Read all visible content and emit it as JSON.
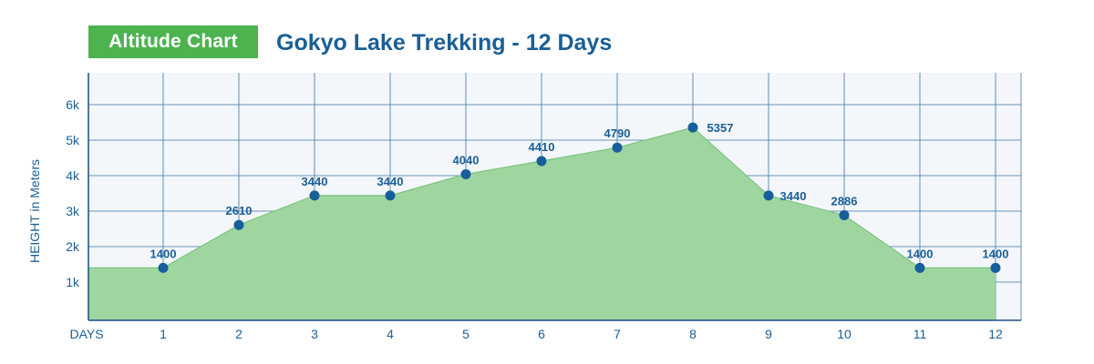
{
  "header": {
    "badge": "Altitude Chart",
    "title": "Gokyo Lake Trekking - 12 Days"
  },
  "colors": {
    "accent_green": "#4cb34f",
    "area_fill": "#9fd69f",
    "area_stroke": "#7cc47e",
    "text_blue": "#1a5f96",
    "grid": "#3b77a8",
    "plot_bg": "#f3f6fa",
    "point": "#175e9a"
  },
  "chart_data": {
    "type": "area",
    "title": "Gokyo Lake Trekking - 12 Days",
    "xlabel": "DAYS",
    "ylabel": "HEIGHT in Meters",
    "x": [
      1,
      2,
      3,
      4,
      5,
      6,
      7,
      8,
      9,
      10,
      11,
      12
    ],
    "values": [
      1400,
      2610,
      3440,
      3440,
      4040,
      4410,
      4790,
      5357,
      3440,
      2886,
      1400,
      1400
    ],
    "start_value": 1400,
    "y_ticks": [
      1000,
      2000,
      3000,
      4000,
      5000,
      6000
    ],
    "y_tick_labels": [
      "1k",
      "2k",
      "3k",
      "4k",
      "5k",
      "6k"
    ],
    "x_tick_labels": [
      "1",
      "2",
      "3",
      "4",
      "5",
      "6",
      "7",
      "8",
      "9",
      "10",
      "11",
      "12"
    ],
    "data_labels": [
      "1400",
      "2610",
      "3440",
      "3440",
      "4040",
      "4410",
      "4790",
      "5357",
      "3440",
      "2886",
      "1400",
      "1400"
    ],
    "ylim": [
      0,
      6000
    ],
    "grid": true
  }
}
